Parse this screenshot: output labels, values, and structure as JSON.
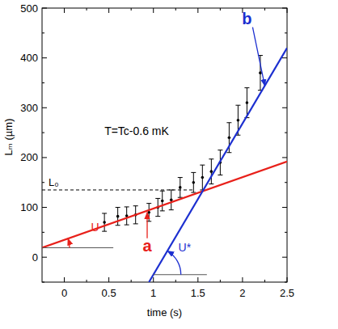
{
  "chart_data": {
    "type": "scatter",
    "x_label": "time (s)",
    "y_label": "Lₘ (µm)",
    "xlim": [
      -0.25,
      2.5
    ],
    "ylim": [
      -50,
      500
    ],
    "xticks": [
      0,
      0.5,
      1,
      1.5,
      2,
      2.5
    ],
    "yticks": [
      0,
      100,
      200,
      300,
      400,
      500
    ],
    "grid": false,
    "series": [
      {
        "type": "scatter",
        "color": "#000000",
        "marker": "dot",
        "x": [
          0.45,
          0.6,
          0.7,
          0.8,
          0.95,
          1.05,
          1.1,
          1.2,
          1.3,
          1.45,
          1.55,
          1.65,
          1.75,
          1.85,
          1.95,
          2.05,
          2.2
        ],
        "values": [
          70,
          82,
          83,
          85,
          90,
          100,
          113,
          115,
          140,
          150,
          160,
          172,
          190,
          240,
          275,
          310,
          370
        ],
        "errors": [
          18,
          18,
          18,
          18,
          18,
          18,
          20,
          20,
          20,
          20,
          25,
          25,
          25,
          30,
          30,
          30,
          35
        ]
      },
      {
        "type": "line",
        "color": "#e8201a",
        "x": [
          -0.25,
          2.5
        ],
        "values": [
          19,
          192
        ],
        "angle": {
          "text": "U",
          "at": [
            -0.25,
            19
          ],
          "to_x": 0.55,
          "label_at": [
            0.3,
            52
          ]
        }
      },
      {
        "type": "line",
        "color": "#1c2fd0",
        "x": [
          0.95,
          2.5
        ],
        "values": [
          -50,
          420
        ],
        "angle": {
          "text": "U*",
          "at": [
            1.0,
            -35
          ],
          "to_x": 1.6,
          "label_at": [
            1.28,
            12
          ]
        }
      }
    ],
    "reference_lines": [
      {
        "label": "L₀",
        "y": 135,
        "x": [
          -0.25,
          1.45
        ],
        "line_style": "dashed",
        "color": "#000000"
      }
    ],
    "annotations": [
      {
        "text": "T=Tc-0.6 mK",
        "x": 0.45,
        "y": 245,
        "color": "#000000"
      },
      {
        "text": "a",
        "x": 0.93,
        "y": 12,
        "arrow_to": [
          0.93,
          90
        ],
        "color": "#e8201a"
      },
      {
        "text": "b",
        "x": 2.05,
        "y": 468,
        "arrow_to": [
          2.25,
          344
        ],
        "color": "#1c2fd0"
      }
    ]
  }
}
